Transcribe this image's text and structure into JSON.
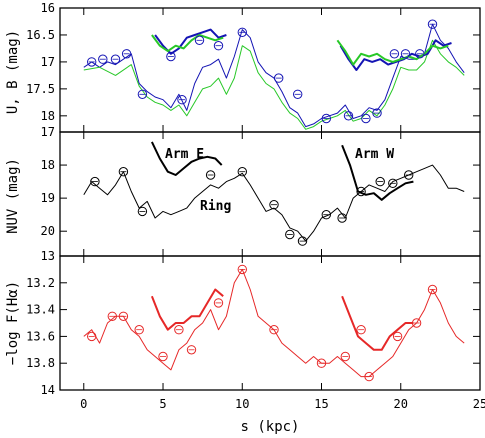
{
  "chart_data": [
    {
      "type": "line",
      "panel": "top",
      "ylabel": "U, B (mag)",
      "ylim": [
        18.3,
        16.0
      ],
      "yinverted": true,
      "yticks": [
        16,
        16.5,
        17,
        17.5,
        18
      ],
      "ytick_labels": [
        "16",
        "16.5",
        "17",
        "17.5",
        "18"
      ],
      "series": [
        {
          "color": "#1414b4",
          "x": [
            0,
            0.5,
            1,
            1.5,
            2,
            2.5,
            3,
            3.5,
            4,
            4.5,
            5,
            5.5,
            6,
            6.5,
            7,
            7.5,
            8,
            8.5,
            9,
            9.5,
            10,
            10.5,
            11,
            11.5,
            12,
            12.5,
            13,
            13.5,
            14,
            14.5,
            15,
            15.5,
            16,
            16.5,
            17,
            17.5,
            18,
            18.5,
            19,
            19.5,
            20,
            20.5,
            21,
            21.5,
            22,
            22.5,
            23,
            23.5,
            24
          ],
          "y": [
            17.1,
            17.0,
            17.1,
            17.0,
            17.05,
            16.95,
            16.85,
            17.4,
            17.55,
            17.65,
            17.7,
            17.85,
            17.6,
            17.9,
            17.4,
            17.1,
            17.05,
            16.95,
            17.3,
            16.9,
            16.4,
            16.55,
            17.0,
            17.2,
            17.3,
            17.55,
            17.85,
            17.95,
            18.2,
            18.15,
            18.05,
            18.0,
            17.95,
            17.8,
            18.05,
            18.0,
            17.85,
            17.9,
            17.7,
            17.3,
            16.9,
            16.95,
            16.95,
            16.85,
            16.3,
            16.6,
            16.75,
            17.0,
            17.2
          ]
        },
        {
          "color": "#28c828",
          "x": [
            0,
            1,
            2,
            3,
            3.5,
            4,
            4.5,
            5,
            5.5,
            6,
            6.5,
            7,
            7.5,
            8,
            8.5,
            9,
            9.5,
            10,
            10.5,
            11,
            11.5,
            12,
            12.5,
            13,
            13.5,
            14,
            14.5,
            15,
            15.5,
            16,
            16.5,
            17,
            17.5,
            18,
            18.5,
            19,
            19.5,
            20,
            20.5,
            21,
            21.5,
            22,
            22.5,
            23,
            23.5,
            24
          ],
          "y": [
            17.15,
            17.1,
            17.25,
            17.05,
            17.45,
            17.65,
            17.75,
            17.8,
            17.9,
            17.8,
            18.0,
            17.75,
            17.5,
            17.45,
            17.3,
            17.6,
            17.3,
            16.7,
            16.8,
            17.2,
            17.4,
            17.5,
            17.75,
            17.95,
            18.05,
            18.25,
            18.2,
            18.1,
            18.05,
            18.0,
            17.9,
            18.1,
            18.05,
            17.9,
            18.0,
            17.8,
            17.5,
            17.1,
            17.15,
            17.15,
            17.0,
            16.6,
            16.85,
            17.0,
            17.1,
            17.25
          ]
        },
        {
          "color": "#1414b4",
          "x": [
            4.5,
            5,
            5.5,
            6,
            6.5,
            7,
            7.5,
            8,
            8.5,
            9
          ],
          "y": [
            16.5,
            16.7,
            16.85,
            16.75,
            16.55,
            16.5,
            16.45,
            16.4,
            16.55,
            16.5
          ]
        },
        {
          "color": "#28c828",
          "x": [
            4.3,
            4.8,
            5.3,
            5.8,
            6.3,
            6.8,
            7.3,
            7.8,
            8.3,
            8.8
          ],
          "y": [
            16.5,
            16.7,
            16.8,
            16.7,
            16.75,
            16.6,
            16.5,
            16.55,
            16.6,
            16.55
          ]
        },
        {
          "color": "#1414b4",
          "x": [
            16.2,
            16.7,
            17.2,
            17.7,
            18.2,
            18.7,
            19.2,
            19.7,
            20.2,
            20.7,
            21.2,
            21.7,
            22.2,
            22.7,
            23.2
          ],
          "y": [
            16.7,
            16.95,
            17.15,
            16.95,
            17.0,
            16.95,
            17.05,
            17.0,
            16.95,
            16.85,
            16.9,
            16.85,
            16.6,
            16.7,
            16.65
          ]
        },
        {
          "color": "#28c828",
          "x": [
            16.0,
            16.5,
            17.0,
            17.5,
            18.0,
            18.5,
            19.0,
            19.5,
            20.0,
            20.5,
            21.0,
            21.5,
            22.0,
            22.5,
            23.0
          ],
          "y": [
            16.6,
            16.8,
            17.05,
            16.85,
            16.9,
            16.85,
            16.95,
            17.0,
            16.95,
            16.9,
            16.95,
            16.85,
            16.7,
            16.75,
            16.7
          ]
        }
      ],
      "markers": {
        "color": "#1414b4",
        "x": [
          0.5,
          1.2,
          2.0,
          2.7,
          3.7,
          5.5,
          6.2,
          7.3,
          8.5,
          10.0,
          12.3,
          13.5,
          15.3,
          16.7,
          17.8,
          18.5,
          19.6,
          20.3,
          21.2,
          22.0
        ],
        "y": [
          17.0,
          16.95,
          16.95,
          16.85,
          17.6,
          16.9,
          17.7,
          16.6,
          16.7,
          16.45,
          17.3,
          17.6,
          18.05,
          18.0,
          18.05,
          17.95,
          16.85,
          16.85,
          16.85,
          16.3
        ]
      }
    },
    {
      "type": "line",
      "panel": "middle",
      "ylabel": "NUV (mag)",
      "ylim": [
        20.75,
        17.0
      ],
      "yinverted": true,
      "yticks": [
        17,
        18,
        19,
        20
      ],
      "ytick_labels": [
        "17",
        "18",
        "19",
        "20"
      ],
      "annotations": [
        "Arm E",
        "Arm W",
        "Ring"
      ],
      "series": [
        {
          "color": "#000000",
          "x": [
            0,
            0.5,
            1,
            1.5,
            2,
            2.5,
            3,
            3.5,
            4,
            4.5,
            5,
            5.5,
            6,
            6.5,
            7,
            7.5,
            8,
            8.5,
            9,
            9.5,
            10,
            10.5,
            11,
            11.5,
            12,
            12.5,
            13,
            13.5,
            14,
            14.5,
            15,
            15.5,
            16,
            16.5,
            17,
            17.5,
            18,
            18.5,
            19,
            19.5,
            20,
            20.5,
            21,
            21.5,
            22,
            22.5,
            23,
            23.5,
            24
          ],
          "y": [
            18.9,
            18.5,
            18.7,
            18.9,
            18.6,
            18.2,
            18.8,
            19.3,
            19.1,
            19.6,
            19.4,
            19.5,
            19.4,
            19.3,
            19.0,
            18.8,
            18.6,
            18.7,
            18.5,
            18.4,
            18.25,
            18.6,
            19.0,
            19.4,
            19.3,
            19.5,
            19.9,
            20.0,
            20.3,
            20.0,
            19.6,
            19.5,
            19.3,
            19.6,
            19.0,
            18.8,
            18.6,
            18.7,
            18.8,
            18.5,
            18.4,
            18.3,
            18.2,
            18.1,
            18.0,
            18.3,
            18.7,
            18.7,
            18.8
          ]
        },
        {
          "color": "#000000",
          "x": [
            4.3,
            4.8,
            5.3,
            5.8,
            6.3,
            6.8,
            7.3,
            7.8,
            8.3,
            8.7
          ],
          "y": [
            17.3,
            17.8,
            18.2,
            18.3,
            18.1,
            17.9,
            17.8,
            17.75,
            17.8,
            18.0
          ]
        },
        {
          "color": "#000000",
          "x": [
            16.3,
            16.8,
            17.3,
            17.8,
            18.3,
            18.8,
            19.3,
            19.8,
            20.3,
            20.8
          ],
          "y": [
            17.4,
            18.0,
            18.8,
            18.9,
            18.85,
            19.05,
            18.85,
            18.7,
            18.55,
            18.5
          ]
        }
      ],
      "markers": {
        "color": "#000000",
        "x": [
          0.7,
          2.5,
          3.7,
          8.0,
          10.0,
          12.0,
          13.0,
          13.8,
          15.3,
          16.3,
          17.5,
          18.7,
          19.5,
          20.5
        ],
        "y": [
          18.5,
          18.2,
          19.4,
          18.3,
          18.2,
          19.2,
          20.1,
          20.3,
          19.5,
          19.6,
          18.8,
          18.5,
          18.55,
          18.3
        ]
      }
    },
    {
      "type": "line",
      "panel": "bottom",
      "ylabel": "−log F(Hα)",
      "ylim": [
        14.0,
        13.0
      ],
      "yinverted": true,
      "yticks": [
        13,
        13.2,
        13.4,
        13.6,
        13.8,
        14
      ],
      "ytick_labels": [
        "13",
        "13.2",
        "13.4",
        "13.6",
        "13.8",
        "14"
      ],
      "series": [
        {
          "color": "#e62828",
          "x": [
            0,
            0.5,
            1,
            1.5,
            2,
            2.5,
            3,
            3.5,
            4,
            4.5,
            5,
            5.5,
            6,
            6.5,
            7,
            7.5,
            8,
            8.5,
            9,
            9.5,
            10,
            10.5,
            11,
            11.5,
            12,
            12.5,
            13,
            13.5,
            14,
            14.5,
            15,
            15.5,
            16,
            16.5,
            17,
            17.5,
            18,
            18.5,
            19,
            19.5,
            20,
            20.5,
            21,
            21.5,
            22,
            22.5,
            23,
            23.5,
            24
          ],
          "y": [
            13.6,
            13.55,
            13.65,
            13.5,
            13.45,
            13.45,
            13.55,
            13.6,
            13.7,
            13.75,
            13.8,
            13.85,
            13.7,
            13.65,
            13.55,
            13.5,
            13.4,
            13.55,
            13.45,
            13.2,
            13.1,
            13.25,
            13.45,
            13.5,
            13.55,
            13.65,
            13.7,
            13.75,
            13.8,
            13.75,
            13.8,
            13.8,
            13.75,
            13.8,
            13.85,
            13.9,
            13.9,
            13.85,
            13.8,
            13.75,
            13.65,
            13.55,
            13.5,
            13.4,
            13.25,
            13.35,
            13.5,
            13.6,
            13.65
          ]
        },
        {
          "color": "#e62828",
          "x": [
            4.3,
            4.8,
            5.3,
            5.8,
            6.3,
            6.8,
            7.3,
            7.8,
            8.3,
            8.8
          ],
          "y": [
            13.3,
            13.45,
            13.55,
            13.5,
            13.5,
            13.45,
            13.45,
            13.35,
            13.25,
            13.3
          ]
        },
        {
          "color": "#e62828",
          "x": [
            16.3,
            16.8,
            17.3,
            17.8,
            18.3,
            18.8,
            19.3,
            19.8,
            20.3,
            20.8
          ],
          "y": [
            13.3,
            13.45,
            13.6,
            13.65,
            13.7,
            13.7,
            13.6,
            13.55,
            13.5,
            13.5
          ]
        }
      ],
      "markers": {
        "color": "#e62828",
        "x": [
          0.5,
          1.8,
          2.5,
          3.5,
          5.0,
          6.0,
          6.8,
          8.5,
          10.0,
          12.0,
          15.0,
          16.5,
          17.5,
          18.0,
          19.8,
          21.0,
          22.0
        ],
        "y": [
          13.6,
          13.45,
          13.45,
          13.55,
          13.75,
          13.55,
          13.7,
          13.35,
          13.1,
          13.55,
          13.8,
          13.75,
          13.55,
          13.9,
          13.6,
          13.5,
          13.25
        ]
      }
    }
  ],
  "xaxis": {
    "xlabel": "s (kpc)",
    "xlim": [
      -1.5,
      25.0
    ],
    "xticks": [
      0,
      5,
      10,
      15,
      20,
      25
    ],
    "xtick_labels": [
      "0",
      "5",
      "10",
      "15",
      "20",
      "25"
    ]
  }
}
